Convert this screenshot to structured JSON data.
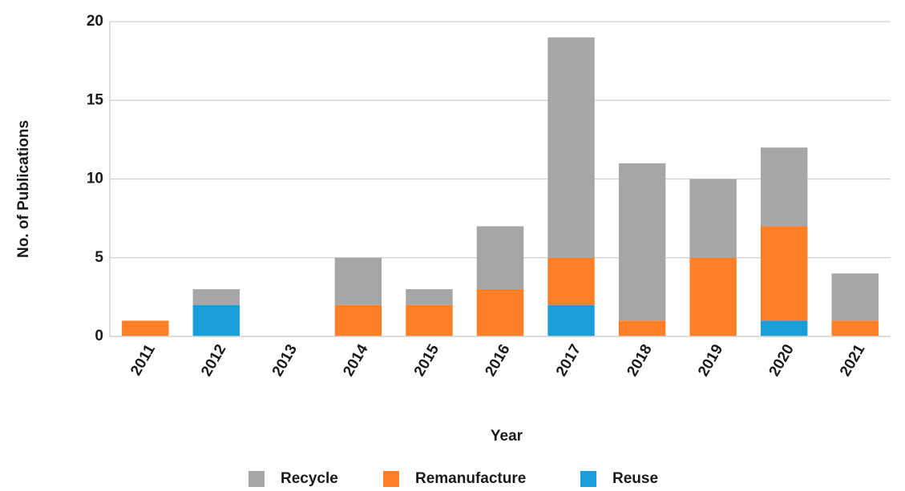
{
  "chart_data": {
    "type": "bar",
    "stacked": true,
    "title": "",
    "xlabel": "Year",
    "ylabel": "No. of Publications",
    "categories": [
      "2011",
      "2012",
      "2013",
      "2014",
      "2015",
      "2016",
      "2017",
      "2018",
      "2019",
      "2020",
      "2021"
    ],
    "series": [
      {
        "name": "Reuse",
        "color": "#1B9DD9",
        "values": [
          0,
          2,
          0,
          0,
          0,
          0,
          2,
          0,
          0,
          1,
          0
        ]
      },
      {
        "name": "Remanufacture",
        "color": "#FF7F27",
        "values": [
          1,
          0,
          0,
          2,
          2,
          3,
          3,
          1,
          5,
          6,
          1
        ]
      },
      {
        "name": "Recycle",
        "color": "#A6A6A6",
        "values": [
          0,
          1,
          0,
          3,
          1,
          4,
          14,
          10,
          5,
          5,
          3
        ]
      }
    ],
    "legend_order": [
      "Recycle",
      "Remanufacture",
      "Reuse"
    ],
    "yticks": [
      "0",
      "5",
      "10",
      "15",
      "20"
    ],
    "ylim": [
      0,
      20
    ],
    "grid": true,
    "legend_position": "bottom"
  }
}
